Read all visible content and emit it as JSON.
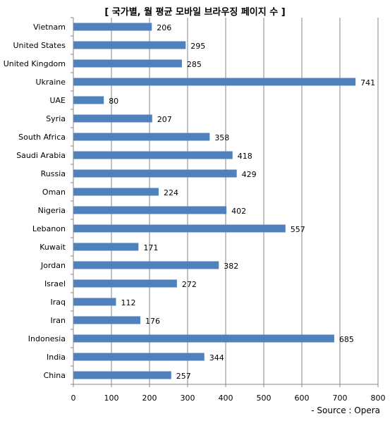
{
  "chart_data": {
    "type": "bar",
    "orientation": "horizontal",
    "title": "[ 국가별, 월 평균 모바일 브라우징 페이지 수 ]",
    "categories": [
      "Vietnam",
      "United States",
      "United Kingdom",
      "Ukraine",
      "UAE",
      "Syria",
      "South Africa",
      "Saudi Arabia",
      "Russia",
      "Oman",
      "Nigeria",
      "Lebanon",
      "Kuwait",
      "Jordan",
      "Israel",
      "Iraq",
      "Iran",
      "Indonesia",
      "India",
      "China"
    ],
    "values": [
      206,
      295,
      285,
      741,
      80,
      207,
      358,
      418,
      429,
      224,
      402,
      557,
      171,
      382,
      272,
      112,
      176,
      685,
      344,
      257
    ],
    "xlim": [
      0,
      800
    ],
    "xticks": [
      0,
      100,
      200,
      300,
      400,
      500,
      600,
      700,
      800
    ],
    "grid": true,
    "legend": "none",
    "bar_color": "#4F81BD",
    "source": "- Source : Opera"
  }
}
